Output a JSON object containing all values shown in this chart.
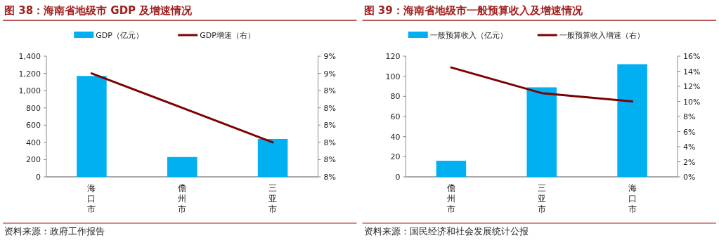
{
  "chart_data": [
    {
      "type": "bar",
      "title": "图 38：海南省地级市 GDP 及增速情况",
      "categories": [
        "海口市",
        "儋州市",
        "三亚市"
      ],
      "legend": "top",
      "series": [
        {
          "name": "GDP（亿元）",
          "color": "#00b0f0",
          "values": [
            1170,
            230,
            440
          ]
        },
        {
          "name": "GDP增速（右）",
          "type": "line",
          "axis": "y2",
          "color": "#7f0000",
          "values": [
            8.5,
            8.3,
            8.1
          ]
        }
      ],
      "ylim": [
        0,
        1400
      ],
      "yticks": [
        0,
        {
          "value": 200,
          "label": "200"
        },
        {
          "value": 400,
          "label": "400"
        },
        {
          "value": 600,
          "label": "600"
        },
        {
          "value": 800,
          "label": "800"
        },
        {
          "value": 1000,
          "label": "1,000"
        },
        {
          "value": 1200,
          "label": "1,200"
        },
        {
          "value": 1400,
          "label": "1,400"
        }
      ],
      "y2lim": [
        7.9,
        8.6
      ],
      "y2ticks": [
        {
          "value": 7.9,
          "label": "8%"
        },
        {
          "value": 8.0,
          "label": "8%"
        },
        {
          "value": 8.1,
          "label": "8%"
        },
        {
          "value": 8.2,
          "label": "8%"
        },
        {
          "value": 8.3,
          "label": "8%"
        },
        {
          "value": 8.4,
          "label": "8%"
        },
        {
          "value": 8.5,
          "label": "9%"
        },
        {
          "value": 8.6,
          "label": "9%"
        }
      ],
      "annotations": [
        "资料来源：政府工作报告"
      ]
    },
    {
      "type": "bar",
      "title": "图 39：海南省地级市一般预算收入及增速情况",
      "categories": [
        "儋州市",
        "三亚市",
        "海口市"
      ],
      "legend": "top",
      "series": [
        {
          "name": "一般预算收入（亿元）",
          "color": "#00b0f0",
          "values": [
            16,
            89,
            112
          ]
        },
        {
          "name": "一般预算收入增速（右）",
          "type": "line",
          "axis": "y2",
          "color": "#7f0000",
          "values": [
            14.5,
            11.1,
            10.0
          ]
        }
      ],
      "ylim": [
        0,
        120
      ],
      "yticks": [
        0,
        20,
        40,
        60,
        80,
        100,
        120
      ],
      "y2lim": [
        0,
        16
      ],
      "y2ticks": [
        {
          "value": 0,
          "label": "0%"
        },
        {
          "value": 2,
          "label": "2%"
        },
        {
          "value": 4,
          "label": "4%"
        },
        {
          "value": 6,
          "label": "6%"
        },
        {
          "value": 8,
          "label": "8%"
        },
        {
          "value": 10,
          "label": "10%"
        },
        {
          "value": 12,
          "label": "12%"
        },
        {
          "value": 14,
          "label": "14%"
        },
        {
          "value": 16,
          "label": "16%"
        }
      ],
      "annotations": [
        "资料来源：国民经济和社会发展统计公报"
      ]
    }
  ]
}
